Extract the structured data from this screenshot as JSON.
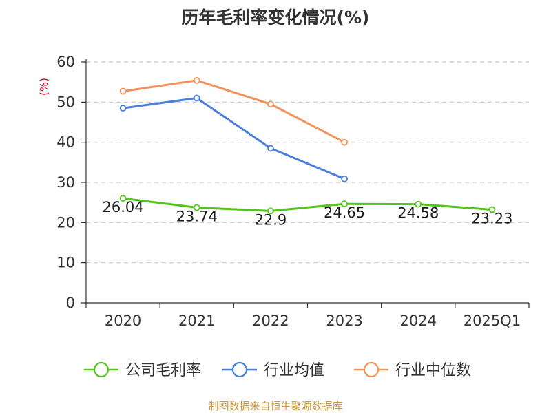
{
  "title": "历年毛利率变化情况(%)",
  "source": "制图数据来自恒生聚源数据库",
  "chart_data": {
    "type": "line",
    "title": "历年毛利率变化情况(%)",
    "ylabel": "(%)",
    "categories": [
      "2020",
      "2021",
      "2022",
      "2023",
      "2024",
      "2025Q1"
    ],
    "ylim": [
      0,
      60
    ],
    "yticks": [
      0,
      10,
      20,
      30,
      40,
      50,
      60
    ],
    "grid": true,
    "legend_position": "bottom",
    "series": [
      {
        "name": "公司毛利率",
        "color": "#52c41a",
        "labels": true,
        "values": [
          26.04,
          23.74,
          22.9,
          24.65,
          24.58,
          23.23
        ]
      },
      {
        "name": "行业均值",
        "color": "#4a7fdc",
        "labels": false,
        "values": [
          48.5,
          51.0,
          38.5,
          30.9,
          null,
          null
        ]
      },
      {
        "name": "行业中位数",
        "color": "#f5915a",
        "labels": false,
        "values": [
          52.7,
          55.4,
          49.5,
          40.0,
          null,
          null
        ]
      }
    ]
  }
}
